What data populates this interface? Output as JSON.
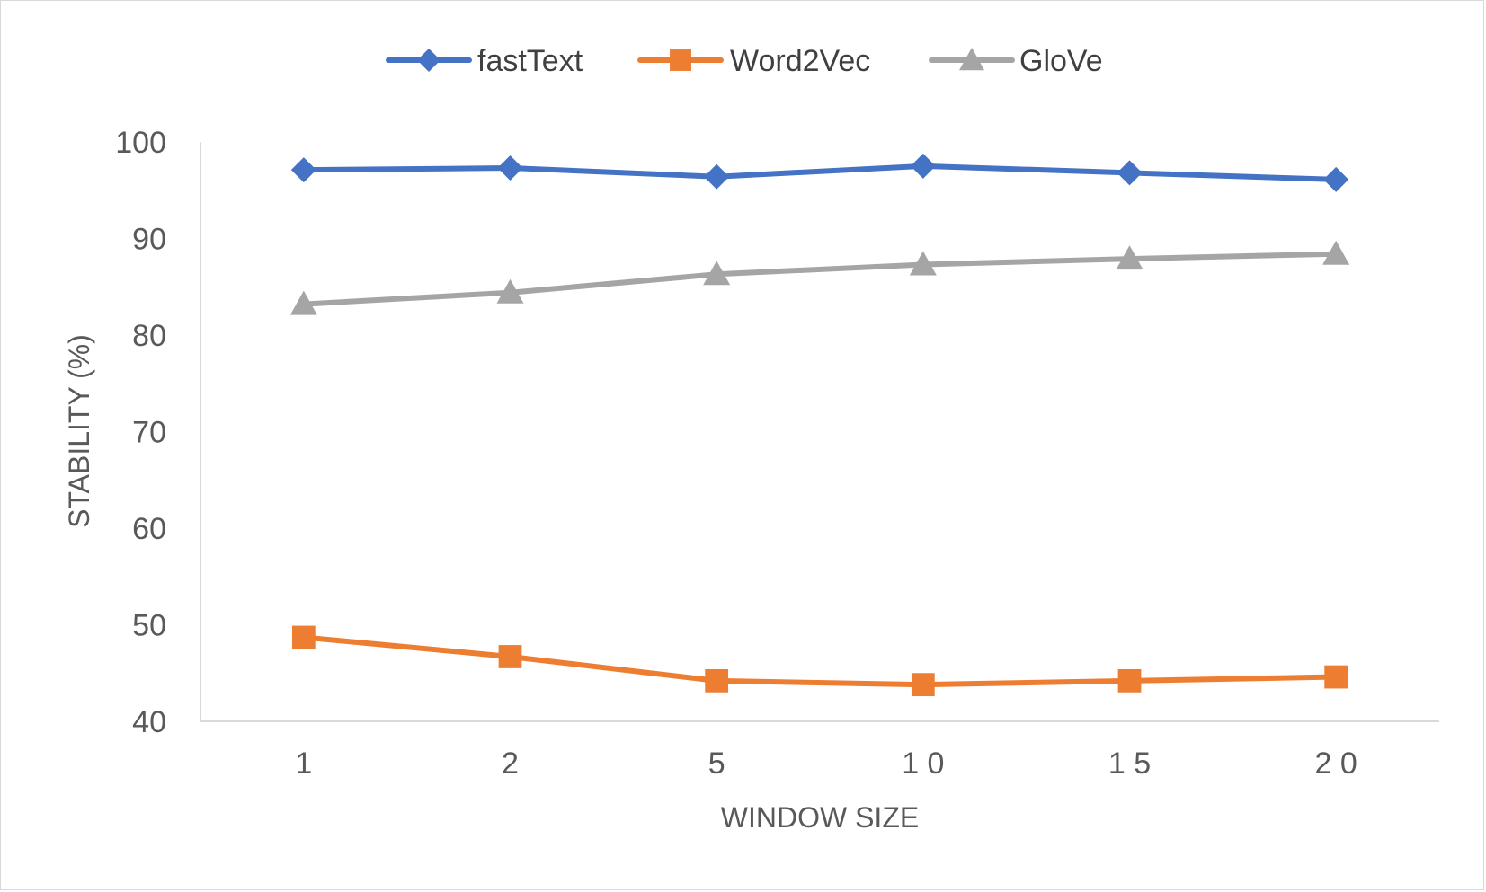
{
  "chart_data": {
    "type": "line",
    "categories": [
      "1",
      "2",
      "5",
      "1 0",
      "1 5",
      "2 0"
    ],
    "series": [
      {
        "name": "fastText",
        "values": [
          97.1,
          97.3,
          96.4,
          97.5,
          96.8,
          96.1
        ],
        "color": "#4472c4",
        "marker": "diamond"
      },
      {
        "name": "Word2Vec",
        "values": [
          48.7,
          46.7,
          44.2,
          43.8,
          44.2,
          44.6
        ],
        "color": "#ed7d31",
        "marker": "square"
      },
      {
        "name": "GloVe",
        "values": [
          83.2,
          84.4,
          86.3,
          87.3,
          87.9,
          88.4
        ],
        "color": "#a5a5a5",
        "marker": "triangle"
      }
    ],
    "xlabel": "WINDOW SIZE",
    "ylabel": "STABILITY (%)",
    "ylim": [
      40,
      100
    ],
    "yticks": [
      40,
      50,
      60,
      70,
      80,
      90,
      100
    ],
    "grid": false,
    "legend": "top-center"
  }
}
